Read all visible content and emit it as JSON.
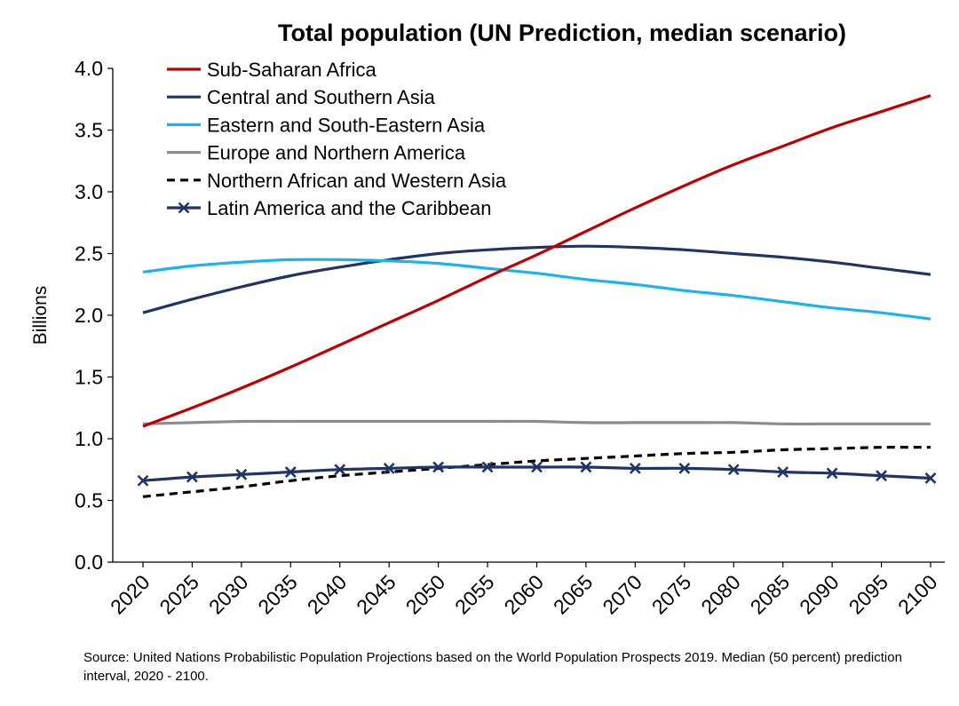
{
  "chart_data": {
    "type": "line",
    "title": "Total population (UN Prediction, median scenario)",
    "ylabel": "Billions",
    "xlabel": "",
    "ylim": [
      0,
      4
    ],
    "yticks": [
      "0.0",
      "0.5",
      "1.0",
      "1.5",
      "2.0",
      "2.5",
      "3.0",
      "3.5",
      "4.0"
    ],
    "x": [
      "2020",
      "2025",
      "2030",
      "2035",
      "2040",
      "2045",
      "2050",
      "2055",
      "2060",
      "2065",
      "2070",
      "2075",
      "2080",
      "2085",
      "2090",
      "2095",
      "2100"
    ],
    "grid": false,
    "legend_position": "top-left",
    "series": [
      {
        "name": "Sub-Saharan Africa",
        "color": "#c00000",
        "style": "solid",
        "marker": "none",
        "values": [
          1.1,
          1.25,
          1.41,
          1.58,
          1.76,
          1.94,
          2.12,
          2.31,
          2.49,
          2.68,
          2.87,
          3.05,
          3.22,
          3.37,
          3.52,
          3.65,
          3.78
        ]
      },
      {
        "name": "Central and Southern Asia",
        "color": "#1f3566",
        "style": "solid",
        "marker": "none",
        "values": [
          2.02,
          2.13,
          2.23,
          2.32,
          2.39,
          2.45,
          2.5,
          2.53,
          2.55,
          2.56,
          2.55,
          2.53,
          2.5,
          2.47,
          2.43,
          2.38,
          2.33
        ]
      },
      {
        "name": "Eastern and South-Eastern Asia",
        "color": "#19b4f0",
        "style": "solid",
        "marker": "none",
        "values": [
          2.35,
          2.4,
          2.43,
          2.45,
          2.45,
          2.44,
          2.42,
          2.38,
          2.34,
          2.29,
          2.25,
          2.2,
          2.16,
          2.11,
          2.06,
          2.02,
          1.97
        ]
      },
      {
        "name": "Europe and Northern America",
        "color": "#8c8c8c",
        "style": "solid",
        "marker": "none",
        "values": [
          1.12,
          1.13,
          1.14,
          1.14,
          1.14,
          1.14,
          1.14,
          1.14,
          1.14,
          1.13,
          1.13,
          1.13,
          1.13,
          1.12,
          1.12,
          1.12,
          1.12
        ]
      },
      {
        "name": "Northern African and Western Asia",
        "color": "#000000",
        "style": "dashed",
        "marker": "none",
        "values": [
          0.53,
          0.57,
          0.61,
          0.66,
          0.7,
          0.73,
          0.76,
          0.79,
          0.82,
          0.84,
          0.86,
          0.88,
          0.89,
          0.91,
          0.92,
          0.93,
          0.93
        ]
      },
      {
        "name": "Latin America and the Caribbean",
        "color": "#1f3566",
        "style": "solid",
        "marker": "x",
        "values": [
          0.66,
          0.69,
          0.71,
          0.73,
          0.75,
          0.76,
          0.77,
          0.77,
          0.77,
          0.77,
          0.76,
          0.76,
          0.75,
          0.73,
          0.72,
          0.7,
          0.68
        ]
      }
    ],
    "source": "Source: United Nations Probabilistic Population Projections based on the World Population Prospects 2019. Median (50 percent) prediction interval, 2020 - 2100."
  }
}
